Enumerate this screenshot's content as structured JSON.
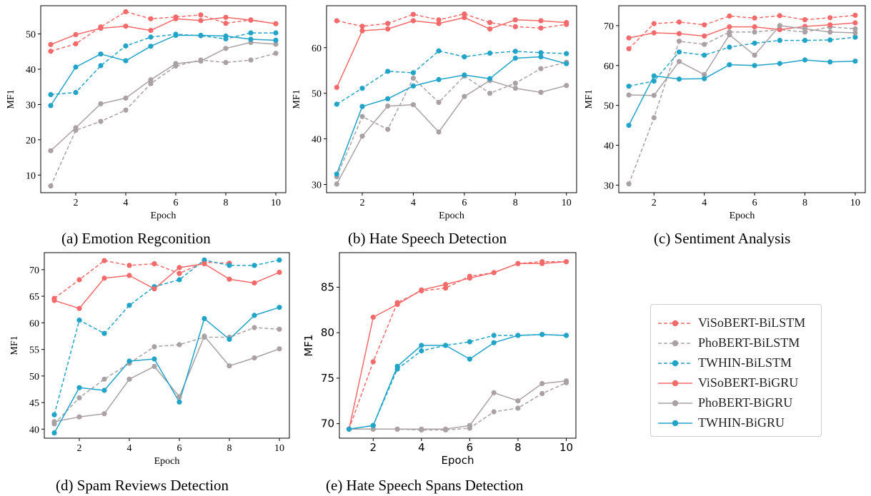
{
  "figure": {
    "captions": [
      "(a) Emotion Regconition",
      "(b) Hate Speech Detection",
      "(c) Sentiment Analysis",
      "(d) Spam Reviews Detection",
      "(e) Hate Speech Spans Detection"
    ]
  },
  "legend": {
    "items": [
      {
        "label": "ViSoBERT-BiLSTM",
        "color": "#f46a6a",
        "dash": true
      },
      {
        "label": "PhoBERT-BiLSTM",
        "color": "#a9a1a3",
        "dash": true
      },
      {
        "label": "TWHIN-BiLSTM",
        "color": "#21a4c8",
        "dash": true
      },
      {
        "label": "ViSoBERT-BiGRU",
        "color": "#f46a6a",
        "dash": false
      },
      {
        "label": "PhoBERT-BiGRU",
        "color": "#a9a1a3",
        "dash": false
      },
      {
        "label": "TWHIN-BiGRU",
        "color": "#21a4c8",
        "dash": false
      }
    ]
  },
  "chart_data": [
    {
      "type": "line",
      "xlabel": "Epoch",
      "ylabel": "MF1",
      "x": [
        1,
        2,
        3,
        4,
        5,
        6,
        7,
        8,
        9,
        10
      ],
      "xlim": [
        0.6,
        10.4
      ],
      "ylim": [
        5,
        58
      ],
      "xticks": [
        2,
        4,
        6,
        8,
        10
      ],
      "yticks": [
        10,
        20,
        30,
        40,
        50
      ],
      "series": [
        {
          "name": "ViSoBERT-BiLSTM",
          "values": [
            45.1,
            47.2,
            52.0,
            56.3,
            54.3,
            54.8,
            55.4,
            53.0,
            54.0,
            52.9
          ]
        },
        {
          "name": "PhoBERT-BiLSTM",
          "values": [
            6.9,
            22.7,
            25.2,
            28.4,
            35.9,
            40.9,
            42.6,
            41.9,
            42.6,
            44.5
          ]
        },
        {
          "name": "TWHIN-BiLSTM",
          "values": [
            32.8,
            33.4,
            41.0,
            46.6,
            49.1,
            49.9,
            49.5,
            48.6,
            50.3,
            50.3
          ]
        },
        {
          "name": "ViSoBERT-BiGRU",
          "values": [
            47.0,
            49.8,
            51.6,
            52.2,
            51.0,
            54.3,
            53.8,
            54.7,
            53.9,
            52.9
          ]
        },
        {
          "name": "PhoBERT-BiGRU",
          "values": [
            16.9,
            23.4,
            30.2,
            31.8,
            37.0,
            41.6,
            42.3,
            45.9,
            47.6,
            47.1
          ]
        },
        {
          "name": "TWHIN-BiGRU",
          "values": [
            29.7,
            40.6,
            44.3,
            42.4,
            46.5,
            49.6,
            49.6,
            49.4,
            48.5,
            48.2
          ]
        }
      ]
    },
    {
      "type": "line",
      "xlabel": "Epoch",
      "ylabel": "MF1",
      "x": [
        1,
        2,
        3,
        4,
        5,
        6,
        7,
        8,
        9,
        10
      ],
      "xlim": [
        0.6,
        10.4
      ],
      "ylim": [
        28.2,
        69.2
      ],
      "xticks": [
        2,
        4,
        6,
        8,
        10
      ],
      "yticks": [
        30,
        40,
        50,
        60
      ],
      "series": [
        {
          "name": "ViSoBERT-BiLSTM",
          "values": [
            65.9,
            64.7,
            65.3,
            67.3,
            66.1,
            67.4,
            65.5,
            64.6,
            64.3,
            65.1
          ]
        },
        {
          "name": "PhoBERT-BiLSTM",
          "values": [
            31.7,
            44.9,
            42.1,
            53.3,
            48.0,
            53.8,
            50.0,
            52.2,
            55.4,
            56.8
          ]
        },
        {
          "name": "TWHIN-BiLSTM",
          "values": [
            47.6,
            51.1,
            54.8,
            54.5,
            59.3,
            58.0,
            58.8,
            59.2,
            58.9,
            58.7
          ]
        },
        {
          "name": "ViSoBERT-BiGRU",
          "values": [
            51.3,
            63.7,
            64.1,
            65.9,
            65.3,
            66.6,
            64.1,
            66.1,
            65.9,
            65.5
          ]
        },
        {
          "name": "PhoBERT-BiGRU",
          "values": [
            30.1,
            40.6,
            47.2,
            47.5,
            41.5,
            49.3,
            52.8,
            51.1,
            50.2,
            51.7
          ]
        },
        {
          "name": "TWHIN-BiGRU",
          "values": [
            32.3,
            47.1,
            48.8,
            51.6,
            53.0,
            54.0,
            53.2,
            57.7,
            58.0,
            56.5
          ]
        }
      ]
    },
    {
      "type": "line",
      "xlabel": "Epoch",
      "ylabel": "MF1",
      "x": [
        1,
        2,
        3,
        4,
        5,
        6,
        7,
        8,
        9,
        10
      ],
      "xlim": [
        0.6,
        10.4
      ],
      "ylim": [
        28.1,
        75.0
      ],
      "xticks": [
        2,
        4,
        6,
        8,
        10
      ],
      "yticks": [
        30,
        40,
        50,
        60,
        70
      ],
      "series": [
        {
          "name": "ViSoBERT-BiLSTM",
          "values": [
            64.2,
            70.5,
            70.9,
            70.2,
            72.4,
            71.9,
            72.5,
            71.5,
            72.0,
            72.6
          ]
        },
        {
          "name": "PhoBERT-BiLSTM",
          "values": [
            30.3,
            46.9,
            66.1,
            65.3,
            68.4,
            68.4,
            69.0,
            68.4,
            69.7,
            69.2
          ]
        },
        {
          "name": "TWHIN-BiLSTM",
          "values": [
            54.8,
            56.1,
            63.4,
            62.6,
            64.6,
            65.6,
            66.3,
            66.3,
            66.4,
            67.1
          ]
        },
        {
          "name": "ViSoBERT-BiGRU",
          "values": [
            66.9,
            68.2,
            68.0,
            67.4,
            69.7,
            69.7,
            69.0,
            69.8,
            70.2,
            70.7
          ]
        },
        {
          "name": "PhoBERT-BiGRU",
          "values": [
            52.6,
            52.5,
            61.0,
            57.7,
            67.7,
            62.6,
            70.0,
            69.2,
            68.4,
            68.2
          ]
        },
        {
          "name": "TWHIN-BiGRU",
          "values": [
            45.0,
            57.4,
            56.6,
            56.7,
            60.2,
            60.0,
            60.5,
            61.4,
            60.9,
            61.1
          ]
        }
      ]
    },
    {
      "type": "line",
      "xlabel": "Epoch",
      "ylabel": "MF1",
      "x": [
        1,
        2,
        3,
        4,
        5,
        6,
        7,
        8,
        9,
        10
      ],
      "xlim": [
        0.6,
        10.4
      ],
      "ylim": [
        38.3,
        73.2
      ],
      "xticks": [
        2,
        4,
        6,
        8,
        10
      ],
      "yticks": [
        40,
        45,
        50,
        55,
        60,
        65,
        70
      ],
      "series": [
        {
          "name": "ViSoBERT-BiLSTM",
          "values": [
            64.6,
            68.1,
            71.7,
            70.8,
            71.1,
            69.3,
            71.4,
            71.2,
            null,
            null
          ]
        },
        {
          "name": "PhoBERT-BiLSTM",
          "values": [
            41.0,
            45.9,
            49.4,
            52.4,
            55.5,
            55.9,
            57.3,
            57.3,
            59.1,
            58.8
          ]
        },
        {
          "name": "TWHIN-BiLSTM",
          "values": [
            42.7,
            60.5,
            58.0,
            63.3,
            66.8,
            68.1,
            71.8,
            70.8,
            70.8,
            71.8
          ]
        },
        {
          "name": "ViSoBERT-BiGRU",
          "values": [
            64.2,
            62.7,
            68.4,
            68.9,
            66.4,
            70.4,
            71.1,
            68.2,
            67.5,
            69.5
          ]
        },
        {
          "name": "PhoBERT-BiGRU",
          "values": [
            41.4,
            42.3,
            42.9,
            49.4,
            51.8,
            46.1,
            57.5,
            51.9,
            53.4,
            55.1
          ]
        },
        {
          "name": "TWHIN-BiGRU",
          "values": [
            39.3,
            47.8,
            47.3,
            52.8,
            53.2,
            45.1,
            60.8,
            56.9,
            61.4,
            62.9
          ]
        }
      ]
    },
    {
      "type": "line",
      "xlabel": "Epoch",
      "ylabel": "MF1",
      "x": [
        1,
        2,
        3,
        4,
        5,
        6,
        7,
        8,
        9,
        10
      ],
      "xlim": [
        0.6,
        10.4
      ],
      "ylim": [
        68.4,
        88.8
      ],
      "xticks": [
        2,
        4,
        6,
        8,
        10
      ],
      "yticks": [
        70,
        75,
        80,
        85
      ],
      "series": [
        {
          "name": "ViSoBERT-BiLSTM",
          "values": [
            69.4,
            76.8,
            83.3,
            84.6,
            84.9,
            86.2,
            86.6,
            87.6,
            87.8,
            87.8
          ]
        },
        {
          "name": "PhoBERT-BiLSTM",
          "values": [
            69.4,
            69.4,
            69.4,
            69.3,
            69.3,
            69.5,
            71.3,
            71.7,
            73.3,
            74.5
          ]
        },
        {
          "name": "TWHIN-BiLSTM",
          "values": [
            69.4,
            69.8,
            76.0,
            78.0,
            78.6,
            79.0,
            79.7,
            79.7,
            79.8,
            79.7
          ]
        },
        {
          "name": "ViSoBERT-BiGRU",
          "values": [
            69.4,
            81.7,
            83.1,
            84.7,
            85.3,
            86.0,
            86.6,
            87.6,
            87.6,
            87.8
          ]
        },
        {
          "name": "PhoBERT-BiGRU",
          "values": [
            69.4,
            69.4,
            69.4,
            69.4,
            69.4,
            69.8,
            73.4,
            72.5,
            74.4,
            74.7
          ]
        },
        {
          "name": "TWHIN-BiGRU",
          "values": [
            69.4,
            69.8,
            76.3,
            78.6,
            78.6,
            77.1,
            78.9,
            79.7,
            79.8,
            79.7
          ]
        }
      ]
    }
  ]
}
